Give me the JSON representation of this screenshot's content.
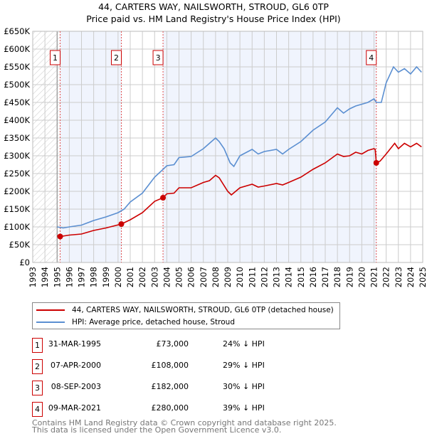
{
  "chart_data": {
    "type": "line",
    "title": "44, CARTERS WAY, NAILSWORTH, STROUD, GL6 0TP",
    "subtitle": "Price paid vs. HM Land Registry's House Price Index (HPI)",
    "xlim": [
      1993,
      2025
    ],
    "ylim": [
      0,
      650000
    ],
    "yticks": [
      0,
      50000,
      100000,
      150000,
      200000,
      250000,
      300000,
      350000,
      400000,
      450000,
      500000,
      550000,
      600000,
      650000
    ],
    "ytick_labels": [
      "£0",
      "£50K",
      "£100K",
      "£150K",
      "£200K",
      "£250K",
      "£300K",
      "£350K",
      "£400K",
      "£450K",
      "£500K",
      "£550K",
      "£600K",
      "£650K"
    ],
    "xtick_labels": [
      "1993",
      "1994",
      "1995",
      "1996",
      "1997",
      "1998",
      "1999",
      "2000",
      "2001",
      "2002",
      "2003",
      "2004",
      "2005",
      "2006",
      "2007",
      "2008",
      "2009",
      "2010",
      "2011",
      "2012",
      "2013",
      "2014",
      "2015",
      "2016",
      "2017",
      "2018",
      "2019",
      "2020",
      "2021",
      "2022",
      "2023",
      "2024",
      "2025"
    ],
    "grid": true,
    "series": [
      {
        "name": "44, CARTERS WAY, NAILSWORTH, STROUD, GL6 0TP (detached house)",
        "color": "#cc0000",
        "x": [
          1995.0,
          1995.25,
          1996,
          1997,
          1998,
          1999,
          2000.27,
          2001,
          2002,
          2003,
          2003.69,
          2004,
          2004.6,
          2005,
          2006,
          2007,
          2007.5,
          2008,
          2008.3,
          2009.0,
          2009.3,
          2010,
          2011,
          2011.5,
          2012,
          2013,
          2013.5,
          2014,
          2015,
          2016,
          2017,
          2018,
          2018.5,
          2019,
          2019.5,
          2020,
          2020.5,
          2021.0,
          2021.1,
          2021.19,
          2021.5,
          2022,
          2022.7,
          2023,
          2023.5,
          2024,
          2024.5,
          2024.9
        ],
        "y": [
          75000,
          73000,
          77000,
          80000,
          90000,
          97000,
          108000,
          120000,
          140000,
          172000,
          182000,
          193000,
          195000,
          210000,
          210000,
          225000,
          230000,
          245000,
          238000,
          200000,
          190000,
          210000,
          220000,
          212000,
          215000,
          222000,
          218000,
          225000,
          240000,
          262000,
          280000,
          305000,
          298000,
          300000,
          310000,
          305000,
          315000,
          320000,
          318000,
          280000,
          285000,
          305000,
          335000,
          320000,
          335000,
          325000,
          335000,
          325000
        ]
      },
      {
        "name": "HPI: Average price, detached house, Stroud",
        "color": "#5b8fd1",
        "x": [
          1995.0,
          1995.5,
          1996,
          1997,
          1998,
          1999,
          2000,
          2000.5,
          2001,
          2002,
          2003,
          2003.7,
          2004,
          2004.6,
          2005,
          2006,
          2007,
          2007.5,
          2008,
          2008.3,
          2008.7,
          2009.2,
          2009.5,
          2010,
          2011,
          2011.5,
          2012,
          2013,
          2013.5,
          2014,
          2015,
          2016,
          2017,
          2018,
          2018.5,
          2019,
          2019.5,
          2020,
          2020.5,
          2021.0,
          2021.2,
          2021.6,
          2022,
          2022.6,
          2023,
          2023.5,
          2024,
          2024.5,
          2024.9
        ],
        "y": [
          100000,
          97000,
          100000,
          105000,
          118000,
          128000,
          140000,
          150000,
          170000,
          195000,
          240000,
          262000,
          272000,
          275000,
          295000,
          298000,
          320000,
          335000,
          350000,
          340000,
          320000,
          280000,
          270000,
          300000,
          318000,
          305000,
          312000,
          318000,
          305000,
          318000,
          340000,
          372000,
          395000,
          435000,
          420000,
          432000,
          440000,
          445000,
          450000,
          460000,
          450000,
          450000,
          505000,
          550000,
          535000,
          545000,
          530000,
          550000,
          535000
        ]
      }
    ],
    "sales": [
      {
        "label": "1",
        "x": 1995.25,
        "y": 73000
      },
      {
        "label": "2",
        "x": 2000.27,
        "y": 108000
      },
      {
        "label": "3",
        "x": 2003.69,
        "y": 182000
      },
      {
        "label": "4",
        "x": 2021.19,
        "y": 280000
      }
    ]
  },
  "legend": {
    "property": "44, CARTERS WAY, NAILSWORTH, STROUD, GL6 0TP (detached house)",
    "hpi": "HPI: Average price, detached house, Stroud"
  },
  "transactions": [
    {
      "num": "1",
      "date": "31-MAR-1995",
      "price": "£73,000",
      "hpi": "24% ↓ HPI"
    },
    {
      "num": "2",
      "date": "07-APR-2000",
      "price": "£108,000",
      "hpi": "29% ↓ HPI"
    },
    {
      "num": "3",
      "date": "08-SEP-2003",
      "price": "£182,000",
      "hpi": "30% ↓ HPI"
    },
    {
      "num": "4",
      "date": "09-MAR-2021",
      "price": "£280,000",
      "hpi": "39% ↓ HPI"
    }
  ],
  "footer": {
    "line1": "Contains HM Land Registry data © Crown copyright and database right 2025.",
    "line2": "This data is licensed under the Open Government Licence v3.0."
  }
}
